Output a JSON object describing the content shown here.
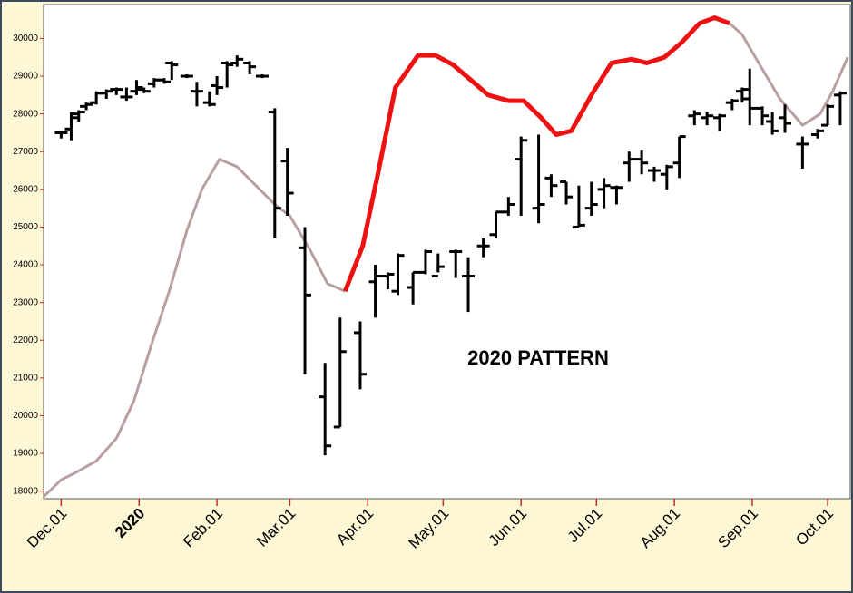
{
  "chart_data": {
    "type": "ohlc",
    "annotation": "2020 PATTERN",
    "xlim": [
      -7,
      314
    ],
    "ylim": [
      17800,
      30900
    ],
    "yticks": [
      18000,
      19000,
      20000,
      21000,
      22000,
      23000,
      24000,
      25000,
      26000,
      27000,
      28000,
      29000,
      30000
    ],
    "xticks": [
      {
        "value": 0,
        "label": "Dec.01"
      },
      {
        "value": 31,
        "label": "2020",
        "color": "#8b1a1a"
      },
      {
        "value": 62,
        "label": "Feb.01"
      },
      {
        "value": 91,
        "label": "Mar.01"
      },
      {
        "value": 122,
        "label": "Apr.01"
      },
      {
        "value": 152,
        "label": "May.01"
      },
      {
        "value": 183,
        "label": "Jun.01"
      },
      {
        "value": 213,
        "label": "Jul.01"
      },
      {
        "value": 244,
        "label": "Aug.01"
      },
      {
        "value": 275,
        "label": "Sep.01"
      },
      {
        "value": 305,
        "label": "Oct.01"
      }
    ],
    "bars": {
      "color": "#000000",
      "x": [
        0,
        4,
        7,
        10,
        14,
        18,
        22,
        26,
        30,
        33,
        37,
        41,
        44,
        50,
        54,
        59,
        62,
        66,
        70,
        75,
        80,
        85,
        90,
        97,
        105,
        111,
        119,
        125,
        130,
        134,
        140,
        145,
        150,
        157,
        162,
        168,
        173,
        178,
        183,
        190,
        195,
        201,
        206,
        211,
        216,
        221,
        226,
        231,
        236,
        241,
        246,
        252,
        257,
        262,
        267,
        271,
        274,
        279,
        283,
        288,
        295,
        301,
        305,
        310
      ],
      "open": [
        27500,
        27600,
        27900,
        28200,
        28300,
        28550,
        28650,
        28450,
        28600,
        28650,
        28800,
        28900,
        29350,
        29000,
        28600,
        28300,
        28750,
        29350,
        29350,
        29350,
        29000,
        28050,
        26750,
        24450,
        20500,
        19700,
        22200,
        23550,
        23700,
        23300,
        23400,
        23800,
        23700,
        24350,
        23700,
        24500,
        24800,
        25400,
        26800,
        25500,
        26300,
        26200,
        25000,
        25500,
        26000,
        26050,
        26700,
        26800,
        26500,
        26400,
        26700,
        27950,
        27900,
        27900,
        28300,
        28600,
        28400,
        28150,
        27800,
        27900,
        27200,
        27450,
        27700,
        28500
      ],
      "high": [
        27550,
        28050,
        28100,
        28300,
        28600,
        28650,
        28700,
        28700,
        28900,
        28700,
        28950,
        28950,
        29400,
        29050,
        28850,
        28600,
        29000,
        29400,
        29550,
        29400,
        29050,
        28150,
        27100,
        25000,
        21400,
        22600,
        22500,
        24000,
        23800,
        24300,
        23800,
        24400,
        24300,
        24400,
        24200,
        24700,
        25400,
        25800,
        27400,
        27450,
        26400,
        26200,
        26100,
        26200,
        26300,
        26100,
        27000,
        27050,
        26600,
        26650,
        27400,
        28100,
        28050,
        28000,
        28400,
        28700,
        29200,
        28200,
        28050,
        28250,
        27400,
        27600,
        28250,
        28600
      ],
      "low": [
        27350,
        27300,
        27800,
        28100,
        28250,
        28400,
        28500,
        28350,
        28500,
        28550,
        28700,
        28800,
        28900,
        28950,
        28200,
        28200,
        28500,
        28700,
        29250,
        29050,
        28950,
        24700,
        25300,
        21100,
        18950,
        19700,
        20700,
        22600,
        23350,
        23200,
        22950,
        23750,
        23800,
        23650,
        22750,
        24200,
        24700,
        25300,
        25300,
        25100,
        25800,
        25600,
        25000,
        25300,
        25500,
        25600,
        26200,
        26400,
        26200,
        26000,
        26300,
        27700,
        27700,
        27550,
        28100,
        28300,
        27700,
        27700,
        27450,
        27500,
        26550,
        27350,
        27700,
        27700
      ],
      "close": [
        27500,
        28000,
        28050,
        28250,
        28550,
        28600,
        28650,
        28450,
        28700,
        28600,
        28900,
        28850,
        29300,
        29000,
        28600,
        28250,
        28700,
        29300,
        29450,
        29250,
        29000,
        25500,
        25900,
        23200,
        19200,
        21700,
        21100,
        23700,
        23750,
        24250,
        23800,
        24350,
        23950,
        24350,
        23700,
        24500,
        25400,
        25600,
        27300,
        25600,
        26100,
        25800,
        25050,
        25600,
        26100,
        26050,
        26800,
        26700,
        26500,
        26600,
        27400,
        28000,
        27950,
        27950,
        28350,
        28650,
        28150,
        27950,
        27550,
        27750,
        27200,
        27550,
        28200,
        28550
      ]
    },
    "pattern": {
      "x": [
        -7,
        0,
        6,
        14,
        22,
        29,
        36,
        43,
        50,
        56,
        63,
        70,
        79,
        85,
        91,
        99,
        106,
        113,
        120,
        126,
        133,
        142,
        149,
        156,
        163,
        170,
        178,
        184,
        191,
        197,
        203,
        211,
        219,
        227,
        233,
        240,
        247,
        254,
        260,
        266,
        271,
        278,
        286,
        295,
        302,
        307,
        313
      ],
      "values": [
        17850,
        18300,
        18500,
        18800,
        19400,
        20400,
        21900,
        23300,
        24900,
        26000,
        26800,
        26600,
        26000,
        25600,
        25300,
        24400,
        23500,
        23300,
        24500,
        26400,
        28700,
        29550,
        29550,
        29300,
        28900,
        28500,
        28350,
        28350,
        27900,
        27450,
        27550,
        28500,
        29350,
        29450,
        29350,
        29500,
        29900,
        30400,
        30550,
        30400,
        30100,
        29300,
        28400,
        27700,
        28000,
        28600,
        29500
      ],
      "colors": [
        "#b8a0a0",
        "#b8a0a0",
        "#b8a0a0",
        "#b8a0a0",
        "#b8a0a0",
        "#b8a0a0",
        "#b8a0a0",
        "#b8a0a0",
        "#b8a0a0",
        "#b8a0a0",
        "#b8a0a0",
        "#b8a0a0",
        "#b8a0a0",
        "#b8a0a0",
        "#b8a0a0",
        "#b8a0a0",
        "#b8a0a0",
        "#ee1111",
        "#ee1111",
        "#ee1111",
        "#ee1111",
        "#ee1111",
        "#ee1111",
        "#ee1111",
        "#ee1111",
        "#ee1111",
        "#ee1111",
        "#ee1111",
        "#ee1111",
        "#ee1111",
        "#ee1111",
        "#ee1111",
        "#ee1111",
        "#ee1111",
        "#ee1111",
        "#ee1111",
        "#ee1111",
        "#ee1111",
        "#ee1111",
        "#b8a0a0",
        "#b8a0a0",
        "#b8a0a0",
        "#b8a0a0",
        "#b8a0a0",
        "#b8a0a0",
        "#b8a0a0",
        "#b8a0a0"
      ]
    }
  }
}
